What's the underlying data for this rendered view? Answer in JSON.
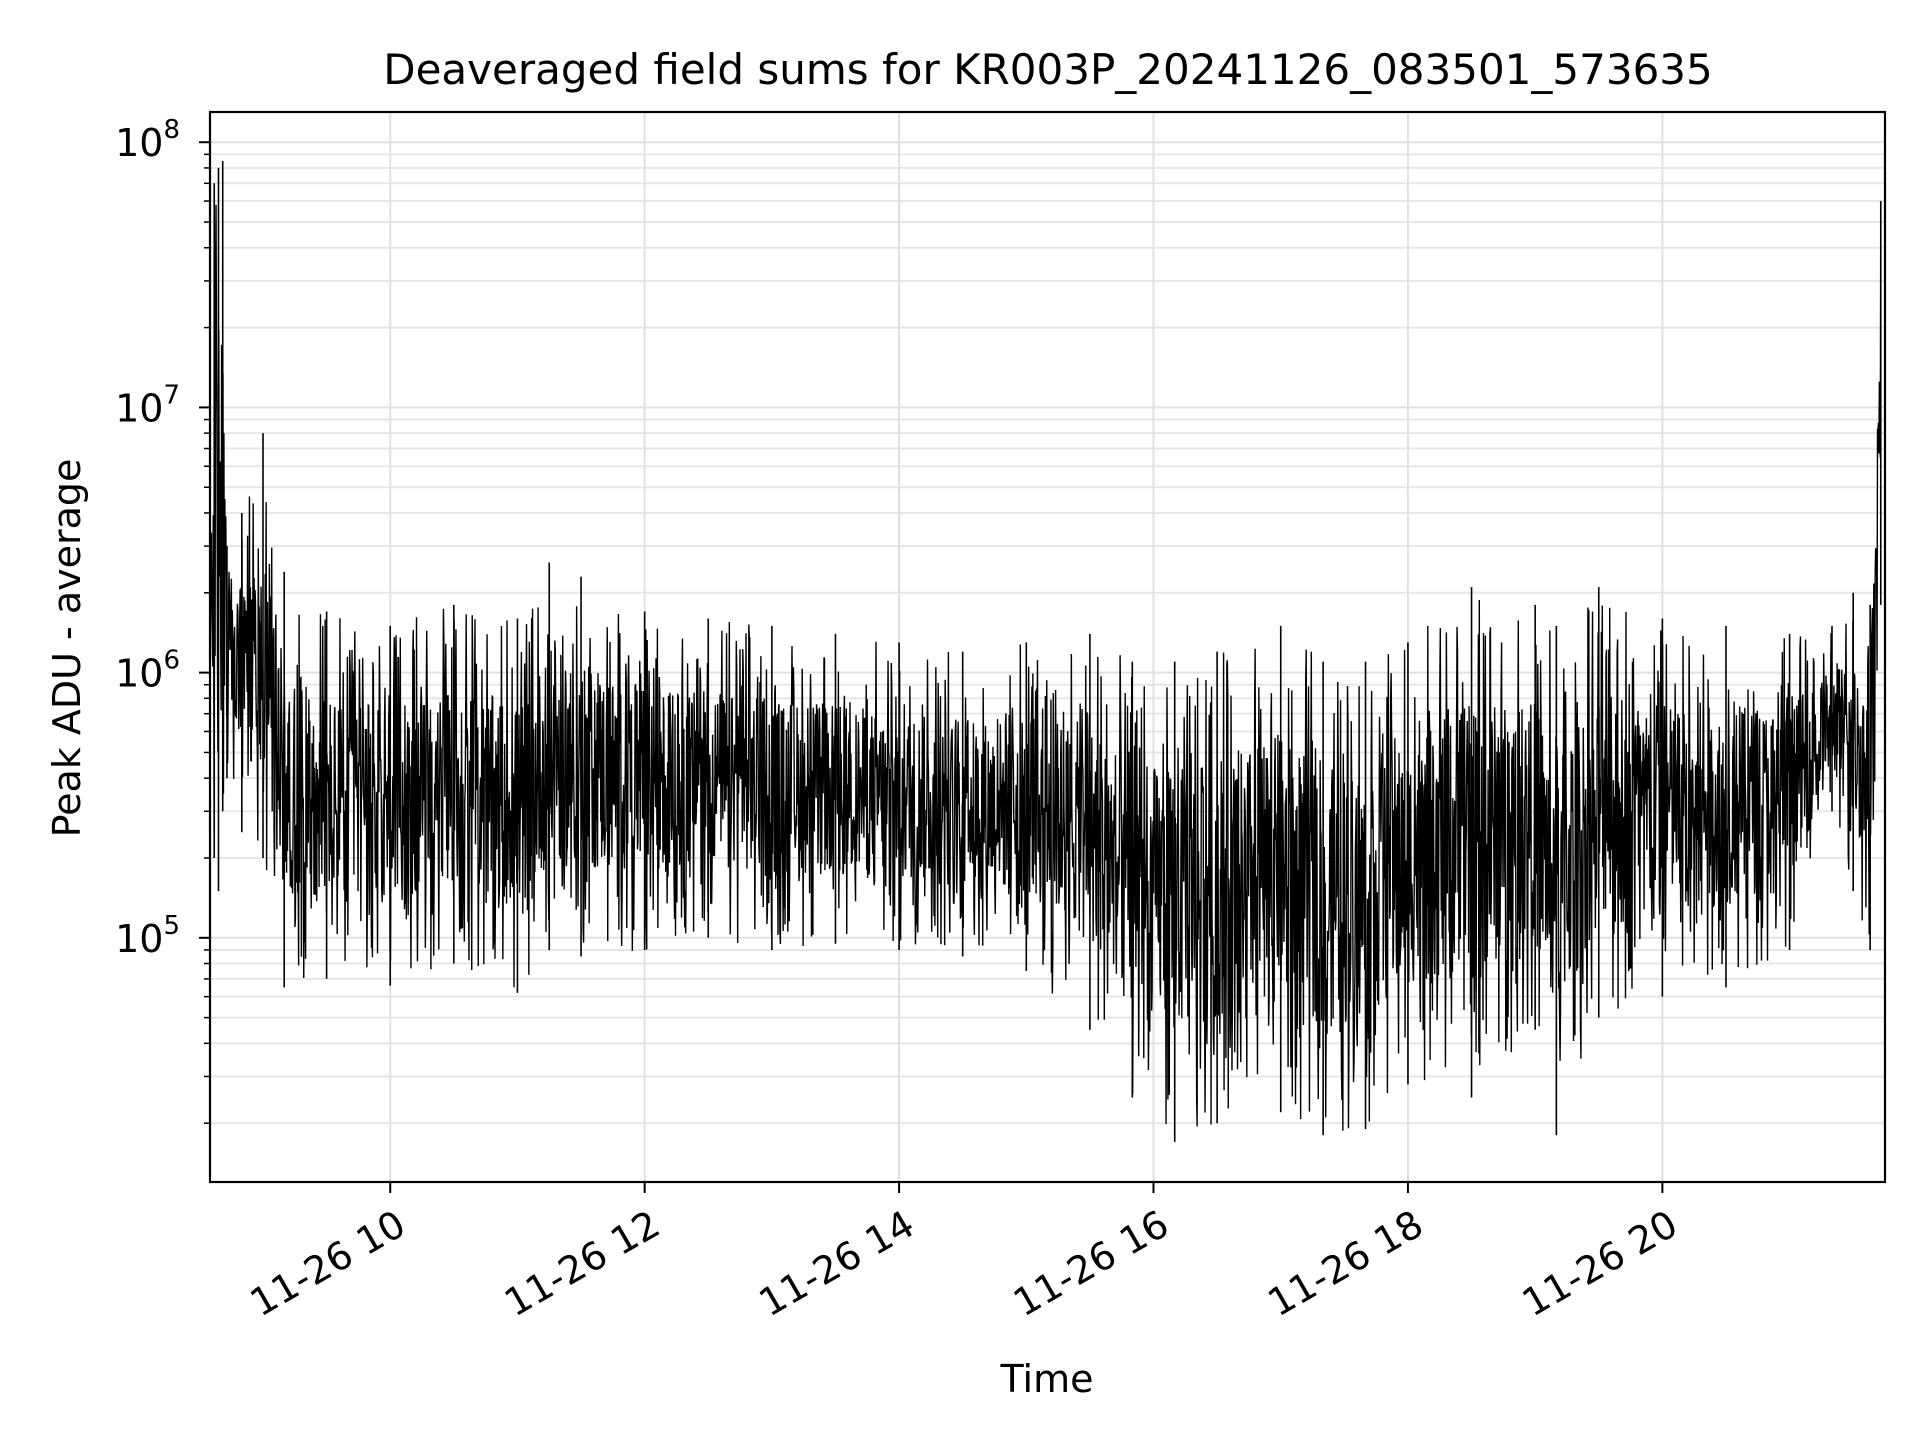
{
  "chart_data": {
    "type": "line",
    "title": "Deaveraged field sums for KR003P_20241126_083501_573635",
    "xlabel": "Time",
    "ylabel": "Peak ADU - average",
    "yscale": "log",
    "ylim": [
      12000,
      130000000
    ],
    "xlim": [
      "2024-11-26T08:35:00",
      "2024-11-26T21:45:00"
    ],
    "grid": true,
    "x_ticks": [
      {
        "value": "2024-11-26T10:00:00",
        "label": "11-26 10"
      },
      {
        "value": "2024-11-26T12:00:00",
        "label": "11-26 12"
      },
      {
        "value": "2024-11-26T14:00:00",
        "label": "11-26 14"
      },
      {
        "value": "2024-11-26T16:00:00",
        "label": "11-26 16"
      },
      {
        "value": "2024-11-26T18:00:00",
        "label": "11-26 18"
      },
      {
        "value": "2024-11-26T20:00:00",
        "label": "11-26 20"
      }
    ],
    "y_ticks": [
      {
        "value": 100000,
        "base": "10",
        "exp": "5"
      },
      {
        "value": 1000000,
        "base": "10",
        "exp": "6"
      },
      {
        "value": 10000000,
        "base": "10",
        "exp": "7"
      },
      {
        "value": 100000000,
        "base": "10",
        "exp": "8"
      }
    ],
    "series": [
      {
        "color": "#000000",
        "points": [
          {
            "t": "2024-11-26T08:35:00",
            "lo": 600000,
            "hi": 2000000
          },
          {
            "t": "2024-11-26T08:37:00",
            "lo": 200000,
            "hi": 70000000
          },
          {
            "t": "2024-11-26T08:39:00",
            "lo": 150000,
            "hi": 80000000
          },
          {
            "t": "2024-11-26T08:41:00",
            "lo": 300000,
            "hi": 85000000
          },
          {
            "t": "2024-11-26T08:43:00",
            "lo": 400000,
            "hi": 3000000
          },
          {
            "t": "2024-11-26T08:50:00",
            "lo": 250000,
            "hi": 4000000
          },
          {
            "t": "2024-11-26T09:00:00",
            "lo": 200000,
            "hi": 8000000
          },
          {
            "t": "2024-11-26T09:10:00",
            "lo": 65000,
            "hi": 2400000
          },
          {
            "t": "2024-11-26T09:30:00",
            "lo": 70000,
            "hi": 1700000
          },
          {
            "t": "2024-11-26T10:00:00",
            "lo": 66000,
            "hi": 1500000
          },
          {
            "t": "2024-11-26T10:30:00",
            "lo": 80000,
            "hi": 1800000
          },
          {
            "t": "2024-11-26T11:00:00",
            "lo": 62000,
            "hi": 1600000
          },
          {
            "t": "2024-11-26T11:15:00",
            "lo": 90000,
            "hi": 2600000
          },
          {
            "t": "2024-11-26T11:30:00",
            "lo": 85000,
            "hi": 2300000
          },
          {
            "t": "2024-11-26T12:00:00",
            "lo": 90000,
            "hi": 1700000
          },
          {
            "t": "2024-11-26T12:30:00",
            "lo": 100000,
            "hi": 1600000
          },
          {
            "t": "2024-11-26T13:00:00",
            "lo": 90000,
            "hi": 1500000
          },
          {
            "t": "2024-11-26T13:30:00",
            "lo": 95000,
            "hi": 1400000
          },
          {
            "t": "2024-11-26T14:00:00",
            "lo": 90000,
            "hi": 1300000
          },
          {
            "t": "2024-11-26T14:30:00",
            "lo": 85000,
            "hi": 1200000
          },
          {
            "t": "2024-11-26T15:00:00",
            "lo": 75000,
            "hi": 1300000
          },
          {
            "t": "2024-11-26T15:30:00",
            "lo": 45000,
            "hi": 1400000
          },
          {
            "t": "2024-11-26T15:50:00",
            "lo": 25000,
            "hi": 1100000
          },
          {
            "t": "2024-11-26T16:10:00",
            "lo": 17000,
            "hi": 1100000
          },
          {
            "t": "2024-11-26T16:30:00",
            "lo": 20000,
            "hi": 1200000
          },
          {
            "t": "2024-11-26T17:00:00",
            "lo": 22000,
            "hi": 1500000
          },
          {
            "t": "2024-11-26T17:20:00",
            "lo": 18000,
            "hi": 1100000
          },
          {
            "t": "2024-11-26T17:40:00",
            "lo": 19000,
            "hi": 1100000
          },
          {
            "t": "2024-11-26T18:00:00",
            "lo": 28000,
            "hi": 1300000
          },
          {
            "t": "2024-11-26T18:30:00",
            "lo": 25000,
            "hi": 2100000
          },
          {
            "t": "2024-11-26T19:00:00",
            "lo": 45000,
            "hi": 1800000
          },
          {
            "t": "2024-11-26T19:10:00",
            "lo": 18000,
            "hi": 1500000
          },
          {
            "t": "2024-11-26T19:30:00",
            "lo": 50000,
            "hi": 2100000
          },
          {
            "t": "2024-11-26T20:00:00",
            "lo": 60000,
            "hi": 1600000
          },
          {
            "t": "2024-11-26T20:30:00",
            "lo": 65000,
            "hi": 1500000
          },
          {
            "t": "2024-11-26T21:00:00",
            "lo": 90000,
            "hi": 1400000
          },
          {
            "t": "2024-11-26T21:20:00",
            "lo": 300000,
            "hi": 1500000
          },
          {
            "t": "2024-11-26T21:30:00",
            "lo": 150000,
            "hi": 2000000
          },
          {
            "t": "2024-11-26T21:38:00",
            "lo": 90000,
            "hi": 1800000
          },
          {
            "t": "2024-11-26T21:43:00",
            "lo": 1800000,
            "hi": 60000000
          }
        ]
      }
    ]
  }
}
